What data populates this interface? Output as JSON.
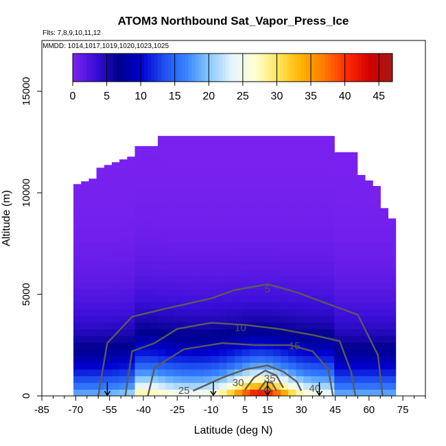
{
  "chart_data": {
    "type": "heatmap",
    "title": "ATOM3 Northbound Sat_Vapor_Press_Ice",
    "subtitle_flights": "Flts: 7,8,9,10,11,12",
    "subtitle_dates": "MMDD: 1014,1017,1019,1020,1023,1025",
    "xlabel": "Latitude (deg N)",
    "ylabel": "Altitude (m)",
    "xlim": [
      -85,
      85
    ],
    "ylim": [
      0,
      17500
    ],
    "x_ticks": [
      -85,
      -70,
      -55,
      -40,
      -25,
      -10,
      5,
      15,
      30,
      45,
      60,
      75
    ],
    "y_ticks": [
      0,
      5000,
      10000,
      15000
    ],
    "colorbar": {
      "range": [
        0,
        47
      ],
      "ticks": [
        0,
        5,
        10,
        15,
        20,
        25,
        30,
        35,
        40,
        45
      ],
      "colors": [
        "#7b22f0",
        "#3a0fd8",
        "#00008b",
        "#0000d0",
        "#1e4ff0",
        "#3a86ff",
        "#8ccaff",
        "#e8f4ff",
        "#ffffd0",
        "#ffe55a",
        "#ffb400",
        "#ff7a00",
        "#ff2a00",
        "#d40000",
        "#a31818"
      ]
    },
    "contour_levels": [
      5,
      10,
      15,
      25,
      30,
      35,
      40
    ],
    "contour_labels": [
      "5",
      "10",
      "15",
      "25",
      "30",
      "35",
      "40"
    ],
    "profile_marker_latitudes": [
      -56,
      -9,
      15,
      38
    ],
    "grid": false,
    "legend": "colorbar-top"
  }
}
